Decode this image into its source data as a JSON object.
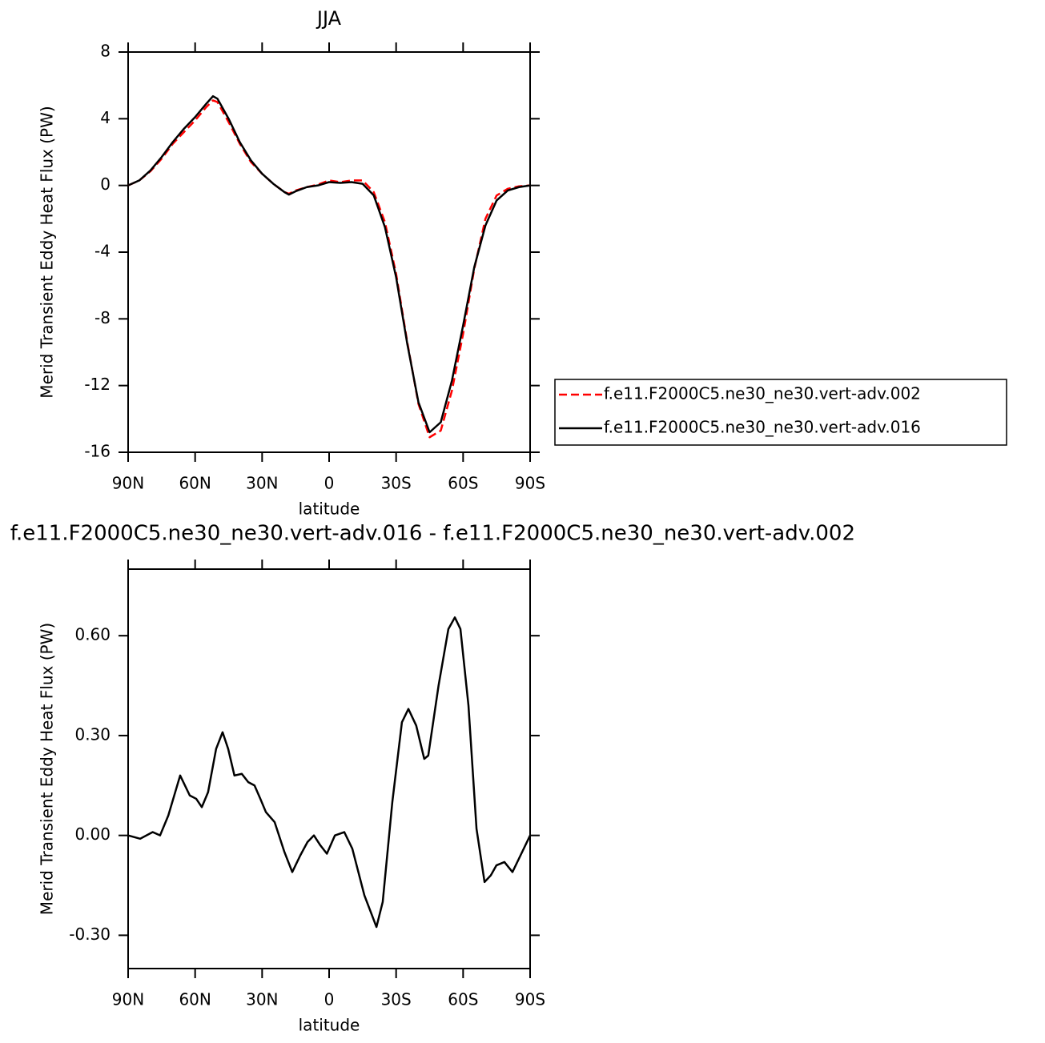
{
  "chart_data": [
    {
      "type": "line",
      "title": "JJA",
      "x_label": "latitude",
      "y_label": "Merid Transient Eddy Heat Flux (PW)",
      "x": [
        90,
        85,
        80,
        75,
        70,
        65,
        60,
        55,
        52,
        50,
        45,
        40,
        35,
        30,
        25,
        20,
        18,
        15,
        10,
        5,
        0,
        -5,
        -10,
        -15,
        -20,
        -25,
        -30,
        -35,
        -40,
        -45,
        -50,
        -55,
        -60,
        -65,
        -70,
        -75,
        -80,
        -85,
        -90
      ],
      "series": [
        {
          "name": "f.e11.F2000C5.ne30_ne30.vert-adv.002",
          "color": "#ff0000",
          "dashed": true,
          "values": [
            0,
            0.3,
            0.85,
            1.6,
            2.5,
            3.2,
            3.9,
            4.7,
            5.1,
            5.0,
            3.8,
            2.5,
            1.4,
            0.7,
            0.1,
            -0.4,
            -0.5,
            -0.3,
            -0.1,
            0.05,
            0.3,
            0.2,
            0.3,
            0.3,
            -0.4,
            -2.2,
            -5.3,
            -9.4,
            -13.1,
            -15.1,
            -14.7,
            -12.3,
            -8.9,
            -5.0,
            -2.0,
            -0.6,
            -0.2,
            -0.05,
            0
          ]
        },
        {
          "name": "f.e11.F2000C5.ne30_ne30.vert-adv.016",
          "color": "#000000",
          "dashed": false,
          "values": [
            0,
            0.3,
            0.9,
            1.7,
            2.6,
            3.4,
            4.1,
            4.9,
            5.35,
            5.2,
            4.0,
            2.6,
            1.5,
            0.7,
            0.1,
            -0.4,
            -0.55,
            -0.35,
            -0.1,
            0.0,
            0.2,
            0.15,
            0.2,
            0.1,
            -0.6,
            -2.5,
            -5.5,
            -9.5,
            -13.0,
            -14.8,
            -14.2,
            -11.7,
            -8.4,
            -4.9,
            -2.4,
            -0.9,
            -0.3,
            -0.1,
            0
          ]
        }
      ],
      "xlim": [
        90,
        -90
      ],
      "xticks": [
        {
          "value": 90,
          "label": "90N"
        },
        {
          "value": 60,
          "label": "60N"
        },
        {
          "value": 30,
          "label": "30N"
        },
        0,
        {
          "value": -30,
          "label": "30S"
        },
        {
          "value": -60,
          "label": "60S"
        },
        {
          "value": -90,
          "label": "90S"
        }
      ],
      "ylim": [
        -16,
        8
      ],
      "yticks": [
        8,
        4,
        0,
        -4,
        -8,
        -12,
        -16
      ],
      "legend": "right"
    },
    {
      "type": "line",
      "title": "f.e11.F2000C5.ne30_ne30.vert-adv.016 - f.e11.F2000C5.ne30_ne30.vert-adv.002",
      "x_label": "latitude",
      "y_label": "Merid Transient Eddy Heat Flux (PW)",
      "x": [
        90,
        84.6,
        79,
        75.7,
        72,
        66.7,
        62.4,
        59.5,
        57,
        54.2,
        50.6,
        47.7,
        45.2,
        42.4,
        39.1,
        36.2,
        33.4,
        30.8,
        28.3,
        24.4,
        20,
        16.5,
        12.9,
        9.7,
        6.8,
        3.9,
        1,
        -2.6,
        -6.8,
        -10.4,
        -15.8,
        -21.2,
        -24,
        -28.3,
        -32.6,
        -35.5,
        -39,
        -42.6,
        -44.4,
        -49,
        -53.4,
        -56.3,
        -58.8,
        -62.4,
        -66,
        -69.6,
        -72.4,
        -74.9,
        -78.5,
        -82.1,
        -85.7,
        -90
      ],
      "series": [
        {
          "color": "#000000",
          "dashed": false,
          "values": [
            0,
            -0.01,
            0.01,
            0.0,
            0.06,
            0.18,
            0.12,
            0.11,
            0.085,
            0.13,
            0.26,
            0.31,
            0.26,
            0.18,
            0.185,
            0.16,
            0.15,
            0.11,
            0.07,
            0.04,
            -0.05,
            -0.11,
            -0.06,
            -0.02,
            0.0,
            -0.03,
            -0.055,
            0.0,
            0.01,
            -0.04,
            -0.18,
            -0.275,
            -0.2,
            0.1,
            0.34,
            0.38,
            0.33,
            0.23,
            0.24,
            0.45,
            0.62,
            0.655,
            0.62,
            0.39,
            0.02,
            -0.14,
            -0.12,
            -0.09,
            -0.08,
            -0.11,
            -0.06,
            0
          ]
        }
      ],
      "xlim": [
        90,
        -90
      ],
      "xticks": [
        {
          "value": 90,
          "label": "90N"
        },
        {
          "value": 60,
          "label": "60N"
        },
        {
          "value": 30,
          "label": "30N"
        },
        0,
        {
          "value": -30,
          "label": "30S"
        },
        {
          "value": -60,
          "label": "60S"
        },
        {
          "value": -90,
          "label": "90S"
        }
      ],
      "ylim": [
        -0.4,
        0.8
      ],
      "yticks": [
        {
          "value": 0.6,
          "label": "0.60"
        },
        {
          "value": 0.3,
          "label": "0.30"
        },
        {
          "value": 0,
          "label": "0.00"
        },
        {
          "value": -0.3,
          "label": "-0.30"
        }
      ]
    }
  ]
}
